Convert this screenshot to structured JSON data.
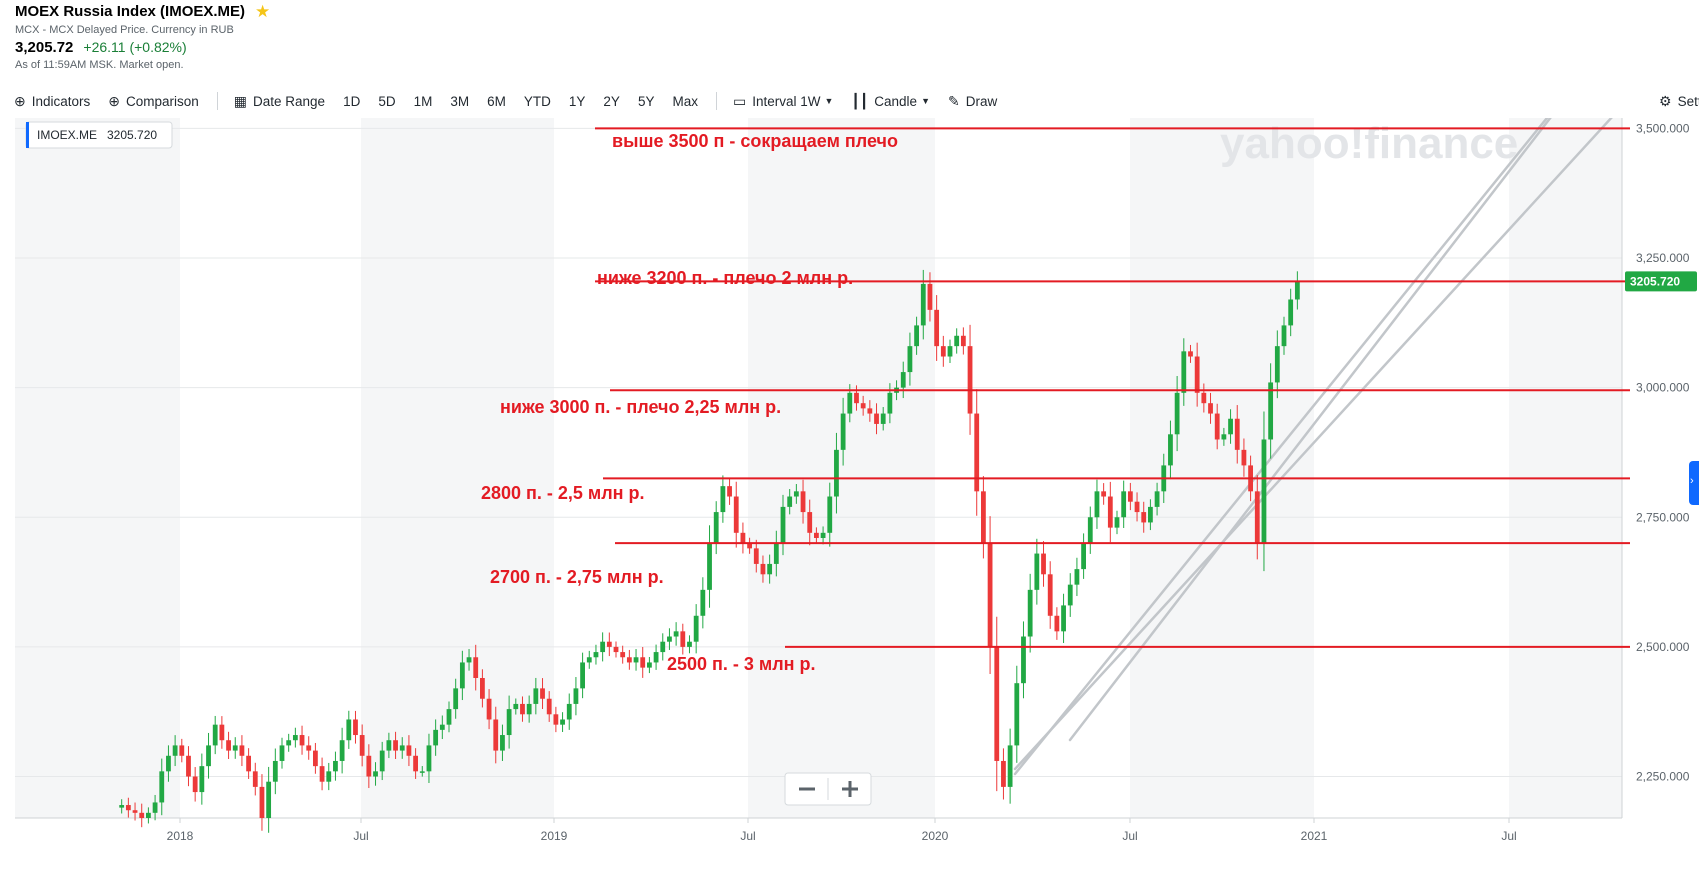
{
  "header": {
    "title": "MOEX Russia Index (IMOEX.ME)",
    "subtitle": "MCX - MCX Delayed Price. Currency in RUB",
    "price": "3,205.72",
    "change": "+26.11 (+0.82%)",
    "as_of": "As of 11:59AM MSK. Market open."
  },
  "toolbar": {
    "indicators": "Indicators",
    "comparison": "Comparison",
    "date_range": "Date Range",
    "ranges": [
      "1D",
      "5D",
      "1M",
      "3M",
      "6M",
      "YTD",
      "1Y",
      "2Y",
      "5Y",
      "Max"
    ],
    "interval_label": "Interval",
    "interval_value": "1W",
    "chart_type": "Candle",
    "draw": "Draw",
    "settings": "Setti"
  },
  "chart_data": {
    "type": "candlestick",
    "legend": {
      "symbol": "IMOEX.ME",
      "value": "3205.720",
      "position": "top-left"
    },
    "last_price_label": "3205.720",
    "y_ticks": [
      "3,500.000",
      "3,250.000",
      "3,000.000",
      "2,750.000",
      "2,500.000",
      "2,250.000"
    ],
    "y_tick_values": [
      3500,
      3250,
      3000,
      2750,
      2500,
      2250
    ],
    "x_ticks": [
      "2018",
      "Jul",
      "2019",
      "Jul",
      "2020",
      "Jul",
      "2021",
      "Jul"
    ],
    "ylim": [
      2170,
      3520
    ],
    "watermark": "yahoo!finance",
    "annotations": [
      {
        "text": "выше 3500 п - сокращаем плечо",
        "level": 3500
      },
      {
        "text": "ниже 3200 п. - плечо 2 млн р.",
        "level": 3205
      },
      {
        "text": "ниже 3000 п. - плечо 2,25 млн р.",
        "level": 2995
      },
      {
        "text": "2800 п.  - 2,5 млн р.",
        "level": 2825
      },
      {
        "text": "2700 п. - 2,75 млн р.",
        "level": 2700
      },
      {
        "text": "2500 п. - 3 млн р.",
        "level": 2500
      }
    ],
    "candles": [
      2190,
      2195,
      2185,
      2180,
      2170,
      2180,
      2200,
      2260,
      2290,
      2310,
      2290,
      2250,
      2220,
      2270,
      2310,
      2350,
      2320,
      2300,
      2310,
      2290,
      2260,
      2230,
      2170,
      2240,
      2280,
      2310,
      2320,
      2330,
      2310,
      2300,
      2270,
      2240,
      2260,
      2280,
      2320,
      2360,
      2330,
      2290,
      2250,
      2260,
      2300,
      2320,
      2300,
      2310,
      2290,
      2260,
      2260,
      2310,
      2340,
      2350,
      2380,
      2420,
      2470,
      2480,
      2440,
      2400,
      2360,
      2300,
      2330,
      2380,
      2390,
      2370,
      2390,
      2420,
      2400,
      2370,
      2350,
      2360,
      2390,
      2420,
      2470,
      2480,
      2490,
      2510,
      2500,
      2490,
      2480,
      2470,
      2480,
      2460,
      2470,
      2490,
      2510,
      2520,
      2530,
      2500,
      2510,
      2560,
      2610,
      2700,
      2760,
      2810,
      2790,
      2720,
      2700,
      2690,
      2660,
      2640,
      2660,
      2700,
      2770,
      2790,
      2800,
      2760,
      2720,
      2710,
      2720,
      2790,
      2880,
      2950,
      2990,
      2970,
      2960,
      2950,
      2930,
      2950,
      2990,
      3000,
      3030,
      3080,
      3120,
      3200,
      3150,
      3080,
      3060,
      3080,
      3100,
      3080,
      2950,
      2800,
      2700,
      2500,
      2280,
      2230,
      2310,
      2430,
      2520,
      2610,
      2680,
      2640,
      2560,
      2530,
      2580,
      2620,
      2650,
      2700,
      2750,
      2800,
      2790,
      2730,
      2750,
      2800,
      2780,
      2760,
      2740,
      2770,
      2800,
      2850,
      2910,
      2990,
      3070,
      3060,
      2990,
      2970,
      2950,
      2900,
      2910,
      2940,
      2880,
      2850,
      2800,
      2700,
      2900,
      3010,
      3080,
      3120,
      3170,
      3205
    ]
  }
}
